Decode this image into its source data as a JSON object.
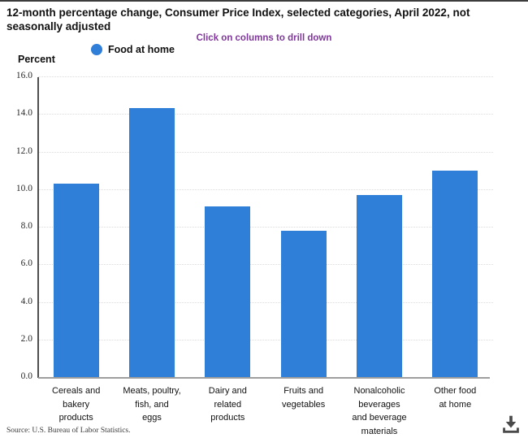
{
  "header": {
    "title": "12-month percentage change, Consumer Price Index, selected categories, April 2022, not\nseasonally adjusted",
    "drilldown_hint": "Click on columns to drill down",
    "unit_label": "Percent",
    "legend": {
      "label": "Food at home",
      "color": "#2f7ed8"
    }
  },
  "chart_data": {
    "type": "bar",
    "title": "12-month percentage change, Consumer Price Index, selected categories, April 2022, not seasonally adjusted",
    "ylabel": "Percent",
    "ylim": [
      0,
      16
    ],
    "ytick_step": 2,
    "ytick_labels": [
      "0.0",
      "2.0",
      "4.0",
      "6.0",
      "8.0",
      "10.0",
      "12.0",
      "14.0",
      "16.0"
    ],
    "grid": "horizontal-dotted",
    "legend_position": "top-left",
    "categories": [
      "Cereals and bakery products",
      "Meats, poultry, fish, and eggs",
      "Dairy and related products",
      "Fruits and vegetables",
      "Nonalcoholic beverages and beverage materials",
      "Other food at home"
    ],
    "category_label_lines": [
      [
        "Cereals and",
        "bakery",
        "products"
      ],
      [
        "Meats, poultry,",
        "fish, and",
        "eggs"
      ],
      [
        "Dairy and",
        "related",
        "products"
      ],
      [
        "Fruits and",
        "vegetables"
      ],
      [
        "Nonalcoholic",
        "beverages",
        "and beverage",
        "materials"
      ],
      [
        "Other food",
        "at home"
      ]
    ],
    "series": [
      {
        "name": "Food at home",
        "color": "#2f7ed8",
        "values": [
          10.3,
          14.3,
          9.1,
          7.8,
          9.7,
          11.0
        ]
      }
    ]
  },
  "footer": {
    "source": "Source: U.S. Bureau of Labor Statistics.",
    "colors": {
      "bar": "#2f7ed8",
      "hint": "#80379b",
      "axis": "#4f4f4f"
    }
  }
}
